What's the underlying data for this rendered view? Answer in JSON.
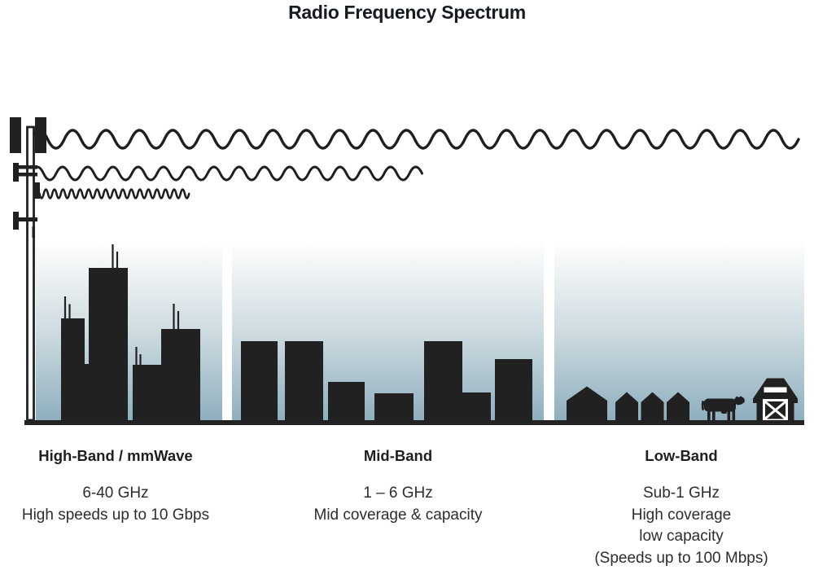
{
  "title": "Radio Frequency Spectrum",
  "colors": {
    "ink": "#212121",
    "title_text": "#161a21",
    "body_text": "#2d2d2d",
    "sky_top": "#ffffff",
    "sky_mid": "#c9d8de",
    "sky_bottom": "#8fafbe",
    "ground": "#222222"
  },
  "tower": {
    "icon": "cell-tower-icon"
  },
  "waves": [
    {
      "icon": "long-wave-icon",
      "wavelength": "long",
      "reach": "longest",
      "band": "Low-Band"
    },
    {
      "icon": "medium-wave-icon",
      "wavelength": "medium",
      "reach": "medium",
      "band": "Mid-Band"
    },
    {
      "icon": "short-wave-icon",
      "wavelength": "short",
      "reach": "shortest",
      "band": "High-Band / mmWave"
    }
  ],
  "bands": [
    {
      "name": "High-Band / mmWave",
      "scene": "city-skyline-icon",
      "lines": [
        "6-40 GHz",
        "High speeds up to 10 Gbps"
      ]
    },
    {
      "name": "Mid-Band",
      "scene": "town-skyline-icon",
      "lines": [
        "1 – 6 GHz",
        "Mid coverage & capacity"
      ]
    },
    {
      "name": "Low-Band",
      "scene": "rural-scene-icon",
      "lines": [
        "Sub-1 GHz",
        "High coverage",
        "low capacity",
        "(Speeds up to 100 Mbps)"
      ]
    }
  ]
}
